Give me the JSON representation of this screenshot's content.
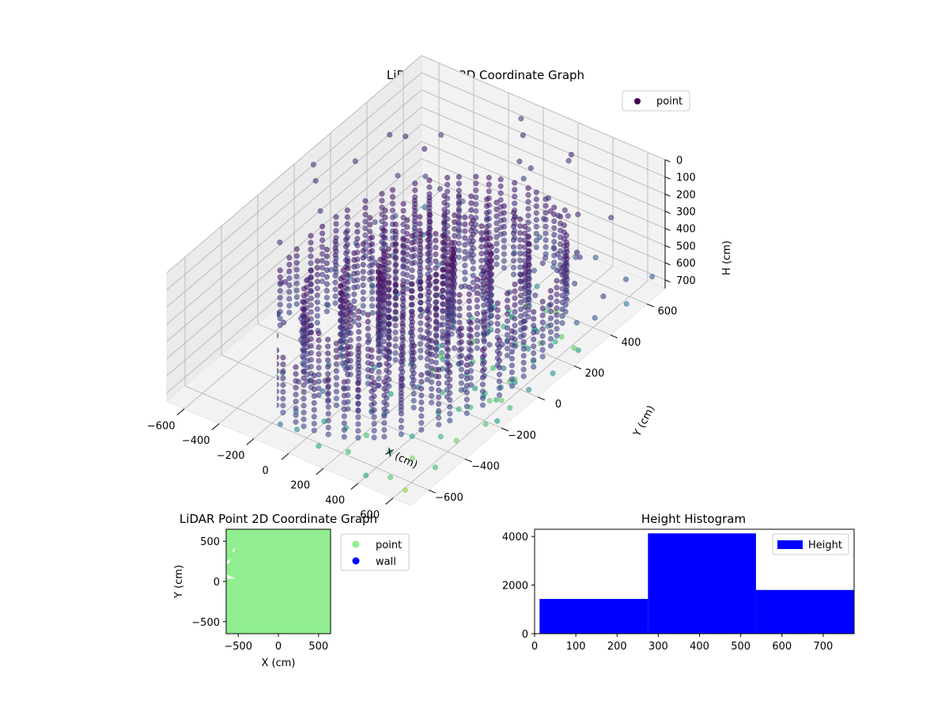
{
  "chart_data": [
    {
      "type": "scatter3d",
      "title": "LiDAR Point 3D Coordinate Graph",
      "xlabel": "X (cm)",
      "ylabel": "Y (cm)",
      "zlabel": "H (cm)",
      "xlim": [
        -700,
        700
      ],
      "ylim": [
        -700,
        700
      ],
      "zlim": [
        750,
        0
      ],
      "x_ticks": [
        "−600",
        "−400",
        "−200",
        "0",
        "200",
        "400",
        "600"
      ],
      "y_ticks": [
        "−600",
        "−400",
        "−200",
        "0",
        "200",
        "400",
        "600"
      ],
      "z_ticks": [
        "0",
        "100",
        "200",
        "300",
        "400",
        "500",
        "600",
        "700"
      ],
      "colormap": "viridis",
      "legend": {
        "entries": [
          "point"
        ],
        "placement": "top-right",
        "marker_color": "#440154"
      },
      "grid": true,
      "structure": {
        "description_free": true,
        "grid_floor_range": [
          -650,
          650
        ],
        "grid_floor_step": 130,
        "ring_radii": [
          150,
          300,
          450,
          600
        ],
        "ring_height_top": 250,
        "ring_height_bottom": 700
      }
    },
    {
      "type": "scatter",
      "title": "LiDAR Point 2D Coordinate Graph",
      "xlabel": "X (cm)",
      "ylabel": "Y (cm)",
      "xlim": [
        -650,
        650
      ],
      "ylim": [
        -650,
        650
      ],
      "x_ticks": [
        "−500",
        "0",
        "500"
      ],
      "y_ticks": [
        "−500",
        "0",
        "500"
      ],
      "series": [
        {
          "name": "point",
          "color": "#90ee90"
        },
        {
          "name": "wall",
          "color": "#0000ff"
        }
      ],
      "legend": {
        "placement": "outside-right"
      },
      "grid": false
    },
    {
      "type": "bar",
      "title": "Height Histogram",
      "bins": [
        {
          "start": 12,
          "end": 275,
          "count": 1430
        },
        {
          "start": 275,
          "end": 537,
          "count": 4130
        },
        {
          "start": 537,
          "end": 775,
          "count": 1800
        }
      ],
      "series": [
        {
          "name": "Height",
          "color": "#0000ff"
        }
      ],
      "xlim": [
        0,
        775
      ],
      "ylim": [
        0,
        4300
      ],
      "x_ticks": [
        "0",
        "100",
        "200",
        "300",
        "400",
        "500",
        "600",
        "700"
      ],
      "y_ticks": [
        "0",
        "2000",
        "4000"
      ],
      "legend": {
        "placement": "top-right"
      },
      "grid": false
    }
  ]
}
